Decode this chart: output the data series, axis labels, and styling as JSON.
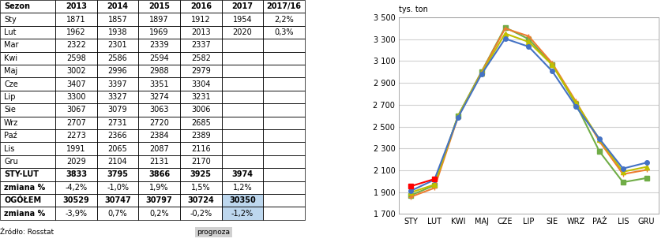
{
  "months": [
    "STY",
    "LUT",
    "KWI",
    "MAJ",
    "CZE",
    "LIP",
    "SIE",
    "WRZ",
    "PAŹ",
    "LIS",
    "GRU"
  ],
  "series": {
    "2013": [
      1871,
      1962,
      2598,
      3002,
      3407,
      3300,
      3067,
      2707,
      2273,
      1991,
      2029
    ],
    "2014": [
      1857,
      1938,
      2586,
      2996,
      3397,
      3327,
      3079,
      2731,
      2366,
      2065,
      2104
    ],
    "2015": [
      1897,
      1969,
      2594,
      2988,
      3351,
      3274,
      3063,
      2720,
      2384,
      2087,
      2131
    ],
    "2016": [
      1912,
      2013,
      2582,
      2979,
      3304,
      3231,
      3006,
      2685,
      2389,
      2116,
      2170
    ],
    "2017": [
      1954,
      2020,
      null,
      null,
      null,
      null,
      null,
      null,
      null,
      null,
      null
    ]
  },
  "colors": {
    "2013": "#70AD47",
    "2014": "#ED7D31",
    "2015": "#BFBF00",
    "2016": "#4472C4",
    "2017": "#FF0000"
  },
  "markers": {
    "2013": "s",
    "2014": "+",
    "2015": "^",
    "2016": "o",
    "2017": "s"
  },
  "table": {
    "headers": [
      "Sezon",
      "2013",
      "2014",
      "2015",
      "2016",
      "2017",
      "2017/16"
    ],
    "rows": [
      [
        "Sty",
        "1871",
        "1857",
        "1897",
        "1912",
        "1954",
        "2,2%"
      ],
      [
        "Lut",
        "1962",
        "1938",
        "1969",
        "2013",
        "2020",
        "0,3%"
      ],
      [
        "Mar",
        "2322",
        "2301",
        "2339",
        "2337",
        "",
        ""
      ],
      [
        "Kwi",
        "2598",
        "2586",
        "2594",
        "2582",
        "",
        ""
      ],
      [
        "Maj",
        "3002",
        "2996",
        "2988",
        "2979",
        "",
        ""
      ],
      [
        "Cze",
        "3407",
        "3397",
        "3351",
        "3304",
        "",
        ""
      ],
      [
        "Lip",
        "3300",
        "3327",
        "3274",
        "3231",
        "",
        ""
      ],
      [
        "Sie",
        "3067",
        "3079",
        "3063",
        "3006",
        "",
        ""
      ],
      [
        "Wrz",
        "2707",
        "2731",
        "2720",
        "2685",
        "",
        ""
      ],
      [
        "Paź",
        "2273",
        "2366",
        "2384",
        "2389",
        "",
        ""
      ],
      [
        "Lis",
        "1991",
        "2065",
        "2087",
        "2116",
        "",
        ""
      ],
      [
        "Gru",
        "2029",
        "2104",
        "2131",
        "2170",
        "",
        ""
      ],
      [
        "STY-LUT",
        "3833",
        "3795",
        "3866",
        "3925",
        "3974",
        ""
      ],
      [
        "zmiana %",
        "-4,2%",
        "-1,0%",
        "1,9%",
        "1,5%",
        "1,2%",
        ""
      ],
      [
        "OGÓŁEM",
        "30529",
        "30747",
        "30797",
        "30724",
        "30350",
        ""
      ],
      [
        "zmiana %",
        "-3,9%",
        "0,7%",
        "0,2%",
        "-0,2%",
        "-1,2%",
        ""
      ]
    ],
    "bold_rows": [
      0,
      1,
      12,
      13,
      14,
      15
    ],
    "highlight_rows": [
      14,
      15
    ],
    "highlight_col5": [
      14,
      15
    ]
  },
  "ylabel": "tys. ton",
  "ylim": [
    1700,
    3500
  ],
  "yticks": [
    1700,
    1900,
    2100,
    2300,
    2500,
    2700,
    2900,
    3100,
    3300,
    3500
  ],
  "footer_left": "Źródło: Rosstat",
  "footer_right": "prognoza",
  "chart_bg": "#FFFFFF",
  "grid_color": "#D0D0D0"
}
